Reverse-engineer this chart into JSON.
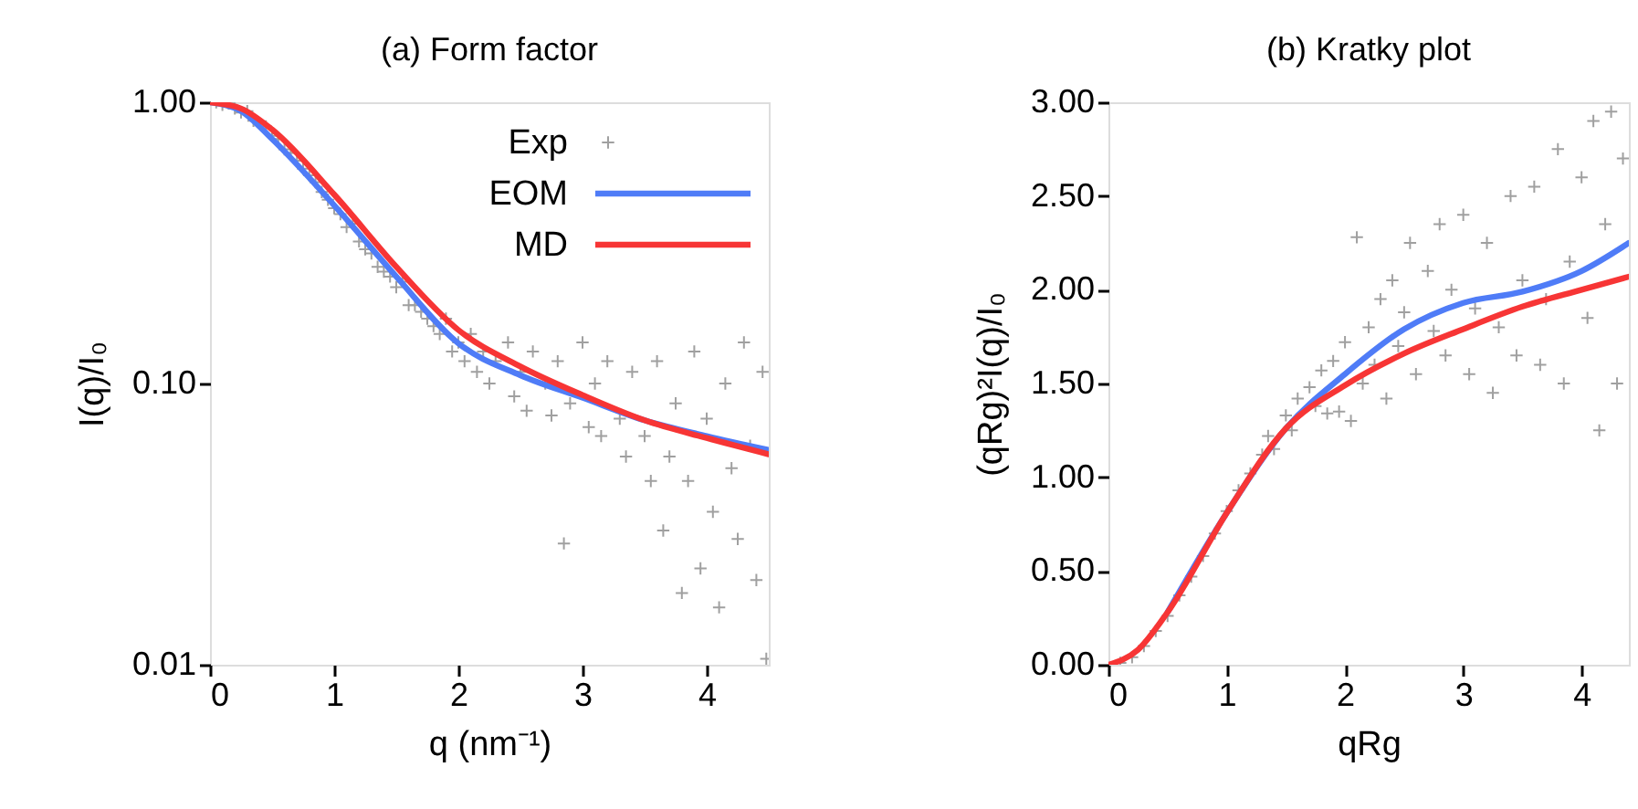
{
  "chart_data": [
    {
      "type": "line",
      "title": "(a) Form factor",
      "xlabel": "q (nm⁻¹)",
      "ylabel": "I(q)/I₀",
      "log": "y",
      "xlim": [
        0,
        4.5
      ],
      "xticks": [
        0,
        1,
        2,
        3,
        4
      ],
      "ylim": [
        0.01,
        1
      ],
      "yticks": [
        {
          "value": 0.01,
          "label": "0.01"
        },
        {
          "value": 0.1,
          "label": "0.10"
        },
        {
          "value": 1,
          "label": "1.00"
        }
      ],
      "legend": "top right",
      "grid": false,
      "series": [
        {
          "name": "Exp",
          "type": "scatter",
          "marker": "cross",
          "color": "#a0a0a0",
          "x": [
            0.05,
            0.1,
            0.15,
            0.2,
            0.25,
            0.3,
            0.35,
            0.45,
            0.5,
            0.55,
            0.6,
            0.65,
            0.7,
            0.75,
            0.8,
            0.85,
            0.9,
            0.95,
            1.0,
            1.05,
            1.1,
            1.15,
            1.2,
            1.25,
            1.3,
            1.35,
            1.4,
            1.45,
            1.5,
            1.55,
            1.6,
            1.65,
            1.7,
            1.75,
            1.8,
            1.85,
            1.9,
            1.95,
            2.0,
            2.05,
            2.1,
            2.15,
            2.2,
            2.25,
            2.3,
            2.4,
            2.45,
            2.5,
            2.55,
            2.6,
            2.7,
            2.75,
            2.8,
            2.85,
            2.9,
            3.0,
            3.05,
            3.1,
            3.15,
            3.2,
            3.3,
            3.35,
            3.4,
            3.5,
            3.55,
            3.6,
            3.65,
            3.7,
            3.75,
            3.8,
            3.85,
            3.9,
            3.95,
            4.0,
            4.05,
            4.1,
            4.15,
            4.2,
            4.25,
            4.3,
            4.35,
            4.4,
            4.45,
            4.48
          ],
          "values": [
            1.0,
            0.98,
            0.99,
            0.95,
            0.92,
            0.93,
            0.86,
            0.82,
            0.76,
            0.74,
            0.68,
            0.66,
            0.62,
            0.58,
            0.55,
            0.52,
            0.48,
            0.45,
            0.42,
            0.4,
            0.36,
            0.37,
            0.32,
            0.3,
            0.29,
            0.26,
            0.25,
            0.24,
            0.22,
            0.23,
            0.19,
            0.19,
            0.18,
            0.17,
            0.16,
            0.15,
            0.17,
            0.13,
            0.14,
            0.12,
            0.15,
            0.11,
            0.13,
            0.1,
            0.12,
            0.14,
            0.09,
            0.11,
            0.08,
            0.13,
            0.1,
            0.077,
            0.12,
            0.027,
            0.085,
            0.14,
            0.07,
            0.1,
            0.065,
            0.12,
            0.075,
            0.055,
            0.11,
            0.065,
            0.045,
            0.12,
            0.03,
            0.055,
            0.085,
            0.018,
            0.045,
            0.13,
            0.022,
            0.075,
            0.035,
            0.016,
            0.1,
            0.05,
            0.028,
            0.14,
            0.06,
            0.02,
            0.11,
            0.0105
          ]
        },
        {
          "name": "EOM",
          "type": "line",
          "color": "#4f7cf7",
          "x": [
            0,
            0.25,
            0.5,
            1.0,
            1.5,
            2.0,
            2.5,
            3.0,
            3.5,
            4.0,
            4.5
          ],
          "values": [
            1.0,
            0.93,
            0.74,
            0.43,
            0.24,
            0.139,
            0.107,
            0.089,
            0.074,
            0.065,
            0.058
          ]
        },
        {
          "name": "MD",
          "type": "line",
          "color": "#f73535",
          "x": [
            0,
            0.25,
            0.5,
            1.0,
            1.5,
            2.0,
            2.5,
            3.0,
            3.5,
            4.0,
            4.5
          ],
          "values": [
            1.0,
            0.95,
            0.8,
            0.47,
            0.26,
            0.155,
            0.115,
            0.091,
            0.074,
            0.064,
            0.056
          ]
        }
      ]
    },
    {
      "type": "line",
      "title": "(b) Kratky plot",
      "xlabel": "qRg",
      "ylabel": "(qRg)²I(q)/I₀",
      "xlim": [
        0,
        4.4
      ],
      "xticks": [
        0,
        1,
        2,
        3,
        4
      ],
      "ylim": [
        0,
        3
      ],
      "yticks": [
        {
          "value": 0,
          "label": "0.00"
        },
        {
          "value": 0.5,
          "label": "0.50"
        },
        {
          "value": 1,
          "label": "1.00"
        },
        {
          "value": 1.5,
          "label": "1.50"
        },
        {
          "value": 2,
          "label": "2.00"
        },
        {
          "value": 2.5,
          "label": "2.50"
        },
        {
          "value": 3,
          "label": "3.00"
        }
      ],
      "legend": false,
      "grid": false,
      "series": [
        {
          "type": "scatter",
          "marker": "cross",
          "color": "#a0a0a0",
          "x": [
            0.1,
            0.2,
            0.3,
            0.4,
            0.5,
            0.6,
            0.7,
            0.8,
            0.9,
            1.0,
            1.1,
            1.2,
            1.3,
            1.35,
            1.4,
            1.5,
            1.55,
            1.6,
            1.7,
            1.75,
            1.8,
            1.85,
            1.9,
            1.95,
            2.0,
            2.05,
            2.1,
            2.15,
            2.2,
            2.25,
            2.3,
            2.35,
            2.4,
            2.45,
            2.5,
            2.55,
            2.6,
            2.7,
            2.75,
            2.8,
            2.85,
            2.9,
            3.0,
            3.05,
            3.1,
            3.2,
            3.25,
            3.3,
            3.4,
            3.45,
            3.5,
            3.6,
            3.65,
            3.7,
            3.8,
            3.85,
            3.9,
            4.0,
            4.05,
            4.1,
            4.15,
            4.2,
            4.25,
            4.3,
            4.35
          ],
          "values": [
            0.01,
            0.04,
            0.1,
            0.18,
            0.26,
            0.37,
            0.47,
            0.58,
            0.7,
            0.82,
            0.93,
            1.02,
            1.12,
            1.22,
            1.15,
            1.33,
            1.25,
            1.42,
            1.48,
            1.38,
            1.57,
            1.34,
            1.62,
            1.35,
            1.72,
            1.3,
            2.28,
            1.5,
            1.8,
            1.6,
            1.95,
            1.42,
            2.05,
            1.7,
            1.88,
            2.25,
            1.55,
            2.1,
            1.78,
            2.35,
            1.65,
            2.0,
            2.4,
            1.55,
            1.9,
            2.25,
            1.45,
            1.8,
            2.5,
            1.65,
            2.05,
            2.55,
            1.6,
            1.95,
            2.75,
            1.5,
            2.15,
            2.6,
            1.85,
            2.9,
            1.25,
            2.35,
            2.95,
            1.5,
            2.7
          ]
        },
        {
          "type": "line",
          "color": "#4f7cf7",
          "x": [
            0.5,
            1.0,
            1.5,
            2.0,
            2.5,
            3.0,
            3.5,
            4.0,
            4.4
          ],
          "values": [
            0.28,
            0.81,
            1.26,
            1.55,
            1.79,
            1.93,
            1.99,
            2.1,
            2.25
          ]
        },
        {
          "type": "line",
          "color": "#f73535",
          "x": [
            0,
            0.25,
            0.5,
            1.0,
            1.5,
            2.0,
            2.5,
            3.0,
            3.5,
            4.0,
            4.4
          ],
          "values": [
            0,
            0.08,
            0.28,
            0.81,
            1.26,
            1.49,
            1.66,
            1.79,
            1.91,
            2.0,
            2.07
          ]
        }
      ]
    }
  ]
}
